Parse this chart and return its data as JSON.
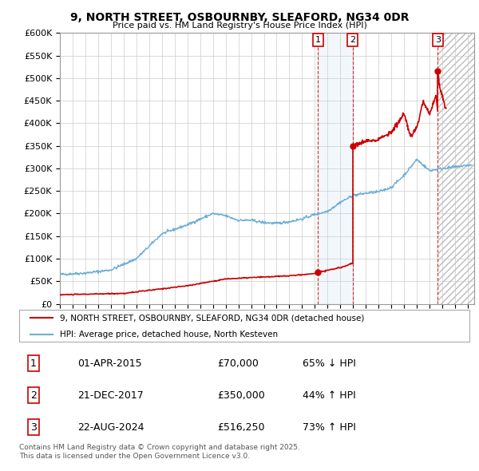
{
  "title": "9, NORTH STREET, OSBOURNBY, SLEAFORD, NG34 0DR",
  "subtitle": "Price paid vs. HM Land Registry's House Price Index (HPI)",
  "ylim": [
    0,
    600000
  ],
  "yticks": [
    0,
    50000,
    100000,
    150000,
    200000,
    250000,
    300000,
    350000,
    400000,
    450000,
    500000,
    550000,
    600000
  ],
  "xlim_start": 1995.0,
  "xlim_end": 2027.5,
  "hpi_color": "#6baed6",
  "price_color": "#cc0000",
  "bg_color": "#ffffff",
  "grid_color": "#cccccc",
  "sale1_date": 2015.25,
  "sale1_price": 70000,
  "sale2_date": 2017.97,
  "sale2_price": 350000,
  "sale3_date": 2024.64,
  "sale3_price": 516250,
  "shaded_region": [
    2015.25,
    2017.97
  ],
  "hatch_region_start": 2024.64,
  "legend_entries": [
    "9, NORTH STREET, OSBOURNBY, SLEAFORD, NG34 0DR (detached house)",
    "HPI: Average price, detached house, North Kesteven"
  ],
  "table_rows": [
    {
      "num": "1",
      "date": "01-APR-2015",
      "price": "£70,000",
      "change": "65% ↓ HPI"
    },
    {
      "num": "2",
      "date": "21-DEC-2017",
      "price": "£350,000",
      "change": "44% ↑ HPI"
    },
    {
      "num": "3",
      "date": "22-AUG-2024",
      "price": "£516,250",
      "change": "73% ↑ HPI"
    }
  ],
  "footnote": "Contains HM Land Registry data © Crown copyright and database right 2025.\nThis data is licensed under the Open Government Licence v3.0."
}
